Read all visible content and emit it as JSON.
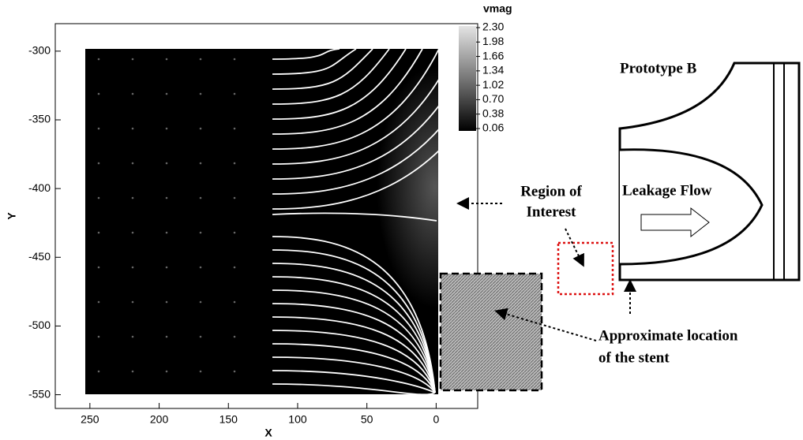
{
  "chart_data": {
    "type": "streamline",
    "x_label": "X",
    "y_label": "Y",
    "xlim": [
      275,
      -30
    ],
    "ylim": [
      -560,
      -280
    ],
    "xticks": [
      250,
      200,
      150,
      100,
      50,
      0
    ],
    "yticks": [
      -300,
      -350,
      -400,
      -450,
      -500,
      -550
    ],
    "colorbar": {
      "title": "vmag",
      "lim": [
        0.06,
        2.3
      ],
      "ticks": [
        {
          "value": 2.3,
          "label": "2.30"
        },
        1.98,
        1.66,
        1.34,
        1.02,
        {
          "value": 0.7,
          "label": "0.70"
        },
        0.38,
        0.06
      ]
    }
  },
  "diagram": {
    "title": "Prototype B",
    "flow_label": "Leakage Flow",
    "region_label": [
      "Region of",
      "Interest"
    ],
    "stent_label": [
      "Approximate location",
      "of the stent"
    ]
  }
}
